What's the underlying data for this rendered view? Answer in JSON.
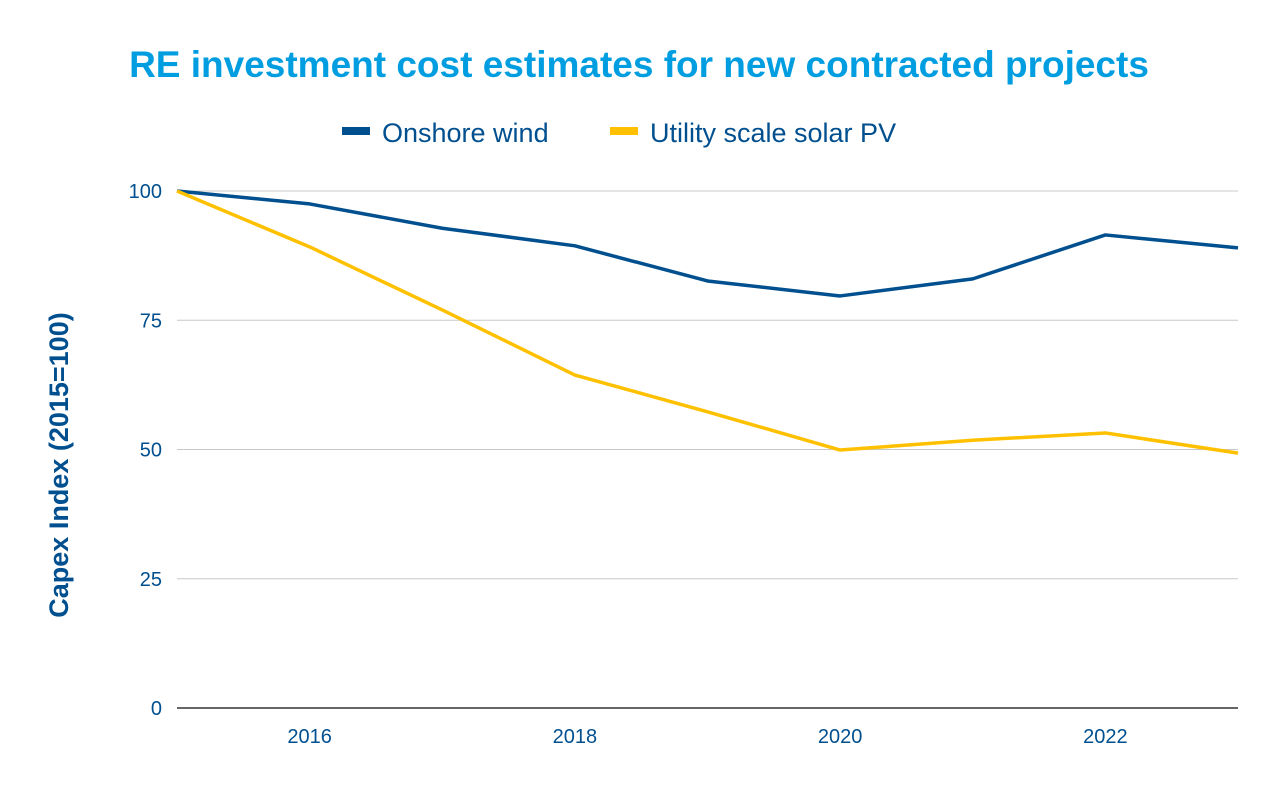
{
  "chart_data": {
    "type": "line",
    "title": "RE investment cost estimates for new contracted projects",
    "xlabel": "",
    "ylabel": "Capex Index (2015=100)",
    "x": [
      2015,
      2016,
      2017,
      2018,
      2019,
      2020,
      2021,
      2022,
      2023
    ],
    "x_tick_labels": [
      "2016",
      "2018",
      "2020",
      "2022"
    ],
    "y_tick_labels": [
      "0",
      "25",
      "50",
      "75",
      "100"
    ],
    "xlim": [
      2015,
      2023
    ],
    "ylim": [
      0,
      100
    ],
    "grid": "horizontal",
    "legend_position": "top",
    "series": [
      {
        "name": "Onshore wind",
        "color": "#004f8f",
        "values": [
          100,
          97.5,
          92.8,
          89.4,
          82.6,
          79.7,
          83.0,
          91.5,
          89.0
        ]
      },
      {
        "name": "Utility scale solar PV",
        "color": "#ffc000",
        "values": [
          100,
          89.2,
          77.0,
          64.4,
          57.3,
          49.9,
          51.8,
          53.2,
          49.3
        ]
      }
    ],
    "colors": {
      "title": "#009ee0",
      "axis_text": "#004f8f",
      "grid": "#c8c8c8"
    }
  }
}
